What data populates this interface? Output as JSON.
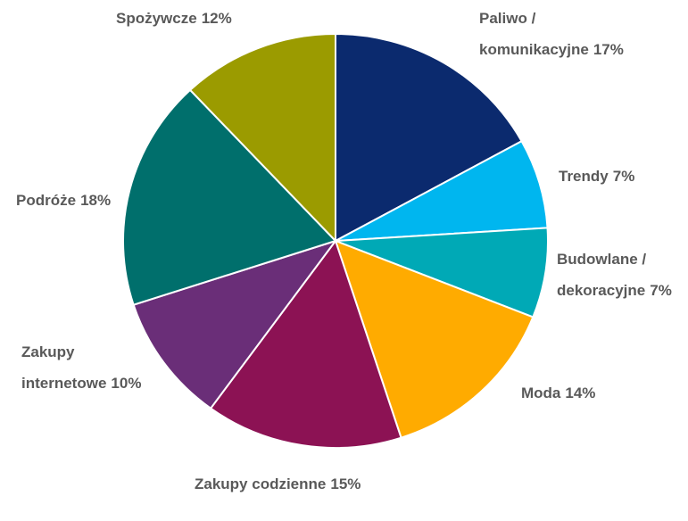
{
  "chart_data": {
    "type": "pie",
    "categories": [
      "Paliwo / komunikacyjne",
      "Trendy",
      "Budowlane / dekoracyjne",
      "Moda",
      "Zakupy codzienne",
      "Zakupy internetowe",
      "Podróże",
      "Spożywcze"
    ],
    "values": [
      17,
      7,
      7,
      14,
      15,
      10,
      18,
      12
    ],
    "value_labels": [
      "17%",
      "7%",
      "7%",
      "14%",
      "15%",
      "10%",
      "18%",
      "12%"
    ],
    "colors": [
      "#0b2a6e",
      "#00b6ef",
      "#00a9b6",
      "#ffab00",
      "#8c1254",
      "#6a2e78",
      "#006f6c",
      "#9b9b00"
    ]
  }
}
